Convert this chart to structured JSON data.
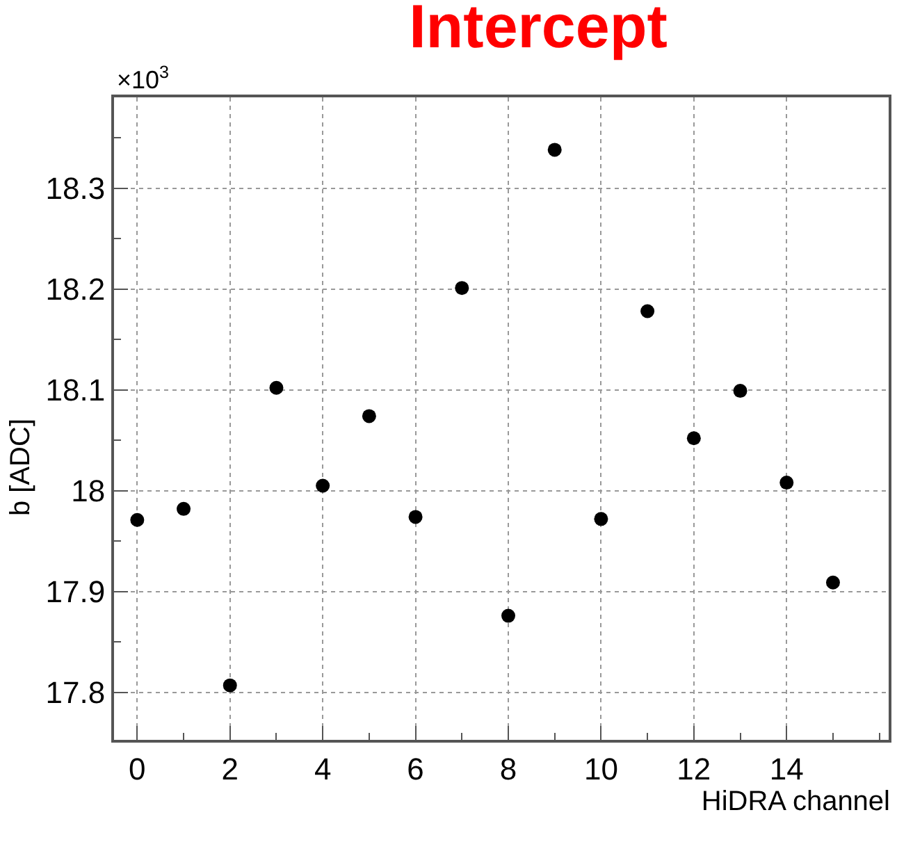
{
  "chart_data": {
    "type": "scatter",
    "title": "Intercept",
    "xlabel": "HiDRA channel",
    "ylabel": "b [ADC]",
    "annotations": [
      "×10$^{3}$"
    ],
    "x": [
      0,
      1,
      2,
      3,
      4,
      5,
      6,
      7,
      8,
      9,
      10,
      11,
      12,
      13,
      14,
      15
    ],
    "series": [
      {
        "color": "#000000",
        "values": [
          17.971,
          17.982,
          17.807,
          18.102,
          18.005,
          18.074,
          17.974,
          18.201,
          17.876,
          18.338,
          17.972,
          18.178,
          18.052,
          18.099,
          18.008,
          17.909
        ]
      }
    ],
    "xlim": [
      -0.5,
      16.2
    ],
    "xticks": [
      0,
      2,
      4,
      6,
      8,
      10,
      12,
      14
    ],
    "ylim": [
      17.753,
      18.39
    ],
    "yticks": [
      17.8,
      17.9,
      18,
      18.1,
      18.2,
      18.3
    ],
    "grid": true,
    "marker": "circle"
  }
}
